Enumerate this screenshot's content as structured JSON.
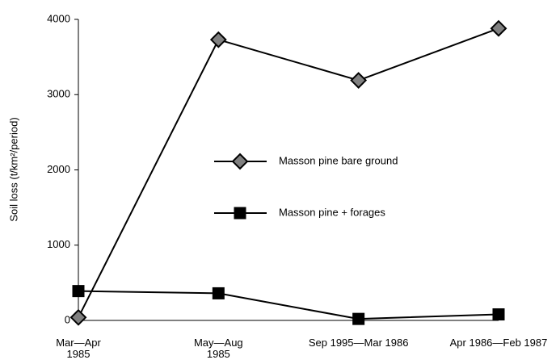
{
  "chart_data": {
    "type": "line",
    "y_label": "Soil loss (t/km²/period)",
    "categories": [
      "Mar—Apr\n1985",
      "May—Aug\n1985",
      "Sep 1995—Mar 1986",
      "Apr 1986—Feb 1987"
    ],
    "series": [
      {
        "name": "Masson pine bare ground",
        "color": "#808080",
        "marker": "diamond",
        "values": [
          40,
          3730,
          3190,
          3880
        ]
      },
      {
        "name": "Masson pine + forages",
        "color": "#000000",
        "marker": "square",
        "values": [
          390,
          360,
          20,
          80
        ]
      }
    ],
    "ylim": [
      0,
      4000
    ],
    "yticks": [
      0,
      1000,
      2000,
      3000,
      4000
    ],
    "grid": false
  }
}
